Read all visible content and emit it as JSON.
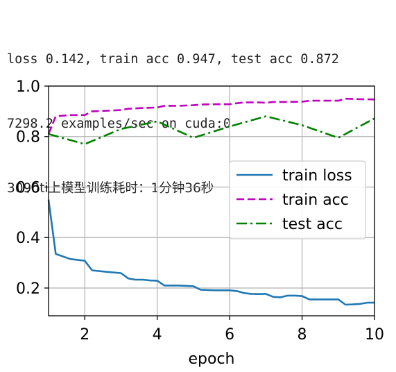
{
  "log": {
    "line1": "loss 0.142, train acc 0.947, test acc 0.872",
    "line2": "7298.2 examples/sec on cuda:0",
    "line3": "3090ti上模型训练耗时：1分钟36秒"
  },
  "chart_data": {
    "type": "line",
    "xlabel": "epoch",
    "ylabel": "",
    "xlim": [
      1,
      10
    ],
    "ylim": [
      0.09,
      1.0
    ],
    "xticks": [
      2,
      4,
      6,
      8,
      10
    ],
    "yticks": [
      0.2,
      0.4,
      0.6,
      0.8,
      1.0
    ],
    "xtick_labels": [
      "2",
      "4",
      "6",
      "8",
      "10"
    ],
    "ytick_labels": [
      "0.2",
      "0.4",
      "0.6",
      "0.8",
      "1.0"
    ],
    "grid": true,
    "legend_position": "center-right",
    "series": [
      {
        "name": "train loss",
        "color": "#1f77b4",
        "dash": "solid",
        "x": [
          1.0,
          1.2,
          1.6,
          2.0,
          2.2,
          2.6,
          3.0,
          3.2,
          3.4,
          3.6,
          3.8,
          4.0,
          4.2,
          4.6,
          5.0,
          5.2,
          5.6,
          6.0,
          6.2,
          6.4,
          6.6,
          6.8,
          7.0,
          7.2,
          7.4,
          7.6,
          7.8,
          8.0,
          8.2,
          8.4,
          8.6,
          8.8,
          9.0,
          9.2,
          9.4,
          9.6,
          9.8,
          10.0
        ],
        "y": [
          0.55,
          0.335,
          0.315,
          0.308,
          0.27,
          0.264,
          0.259,
          0.238,
          0.233,
          0.233,
          0.23,
          0.229,
          0.21,
          0.21,
          0.207,
          0.193,
          0.191,
          0.191,
          0.188,
          0.18,
          0.177,
          0.176,
          0.177,
          0.165,
          0.163,
          0.17,
          0.17,
          0.168,
          0.155,
          0.155,
          0.155,
          0.155,
          0.155,
          0.134,
          0.135,
          0.137,
          0.142,
          0.142
        ]
      },
      {
        "name": "train acc",
        "color": "#bf00bf",
        "dash": "dashed",
        "x": [
          1.0,
          1.2,
          1.6,
          2.0,
          2.2,
          2.6,
          3.0,
          3.2,
          3.6,
          4.0,
          4.2,
          4.6,
          5.0,
          5.2,
          5.6,
          6.0,
          6.2,
          6.4,
          6.8,
          7.0,
          7.2,
          7.6,
          8.0,
          8.2,
          8.6,
          9.0,
          9.2,
          9.6,
          10.0
        ],
        "y": [
          0.81,
          0.88,
          0.885,
          0.885,
          0.9,
          0.902,
          0.905,
          0.91,
          0.913,
          0.915,
          0.922,
          0.922,
          0.924,
          0.927,
          0.928,
          0.928,
          0.932,
          0.935,
          0.935,
          0.934,
          0.937,
          0.937,
          0.938,
          0.942,
          0.942,
          0.942,
          0.95,
          0.948,
          0.947
        ]
      },
      {
        "name": "test acc",
        "color": "#008000",
        "dash": "dashdot",
        "x": [
          1,
          2,
          3,
          4,
          5,
          6,
          7,
          8,
          9,
          10
        ],
        "y": [
          0.81,
          0.77,
          0.83,
          0.86,
          0.795,
          0.84,
          0.88,
          0.845,
          0.795,
          0.872
        ]
      }
    ]
  }
}
